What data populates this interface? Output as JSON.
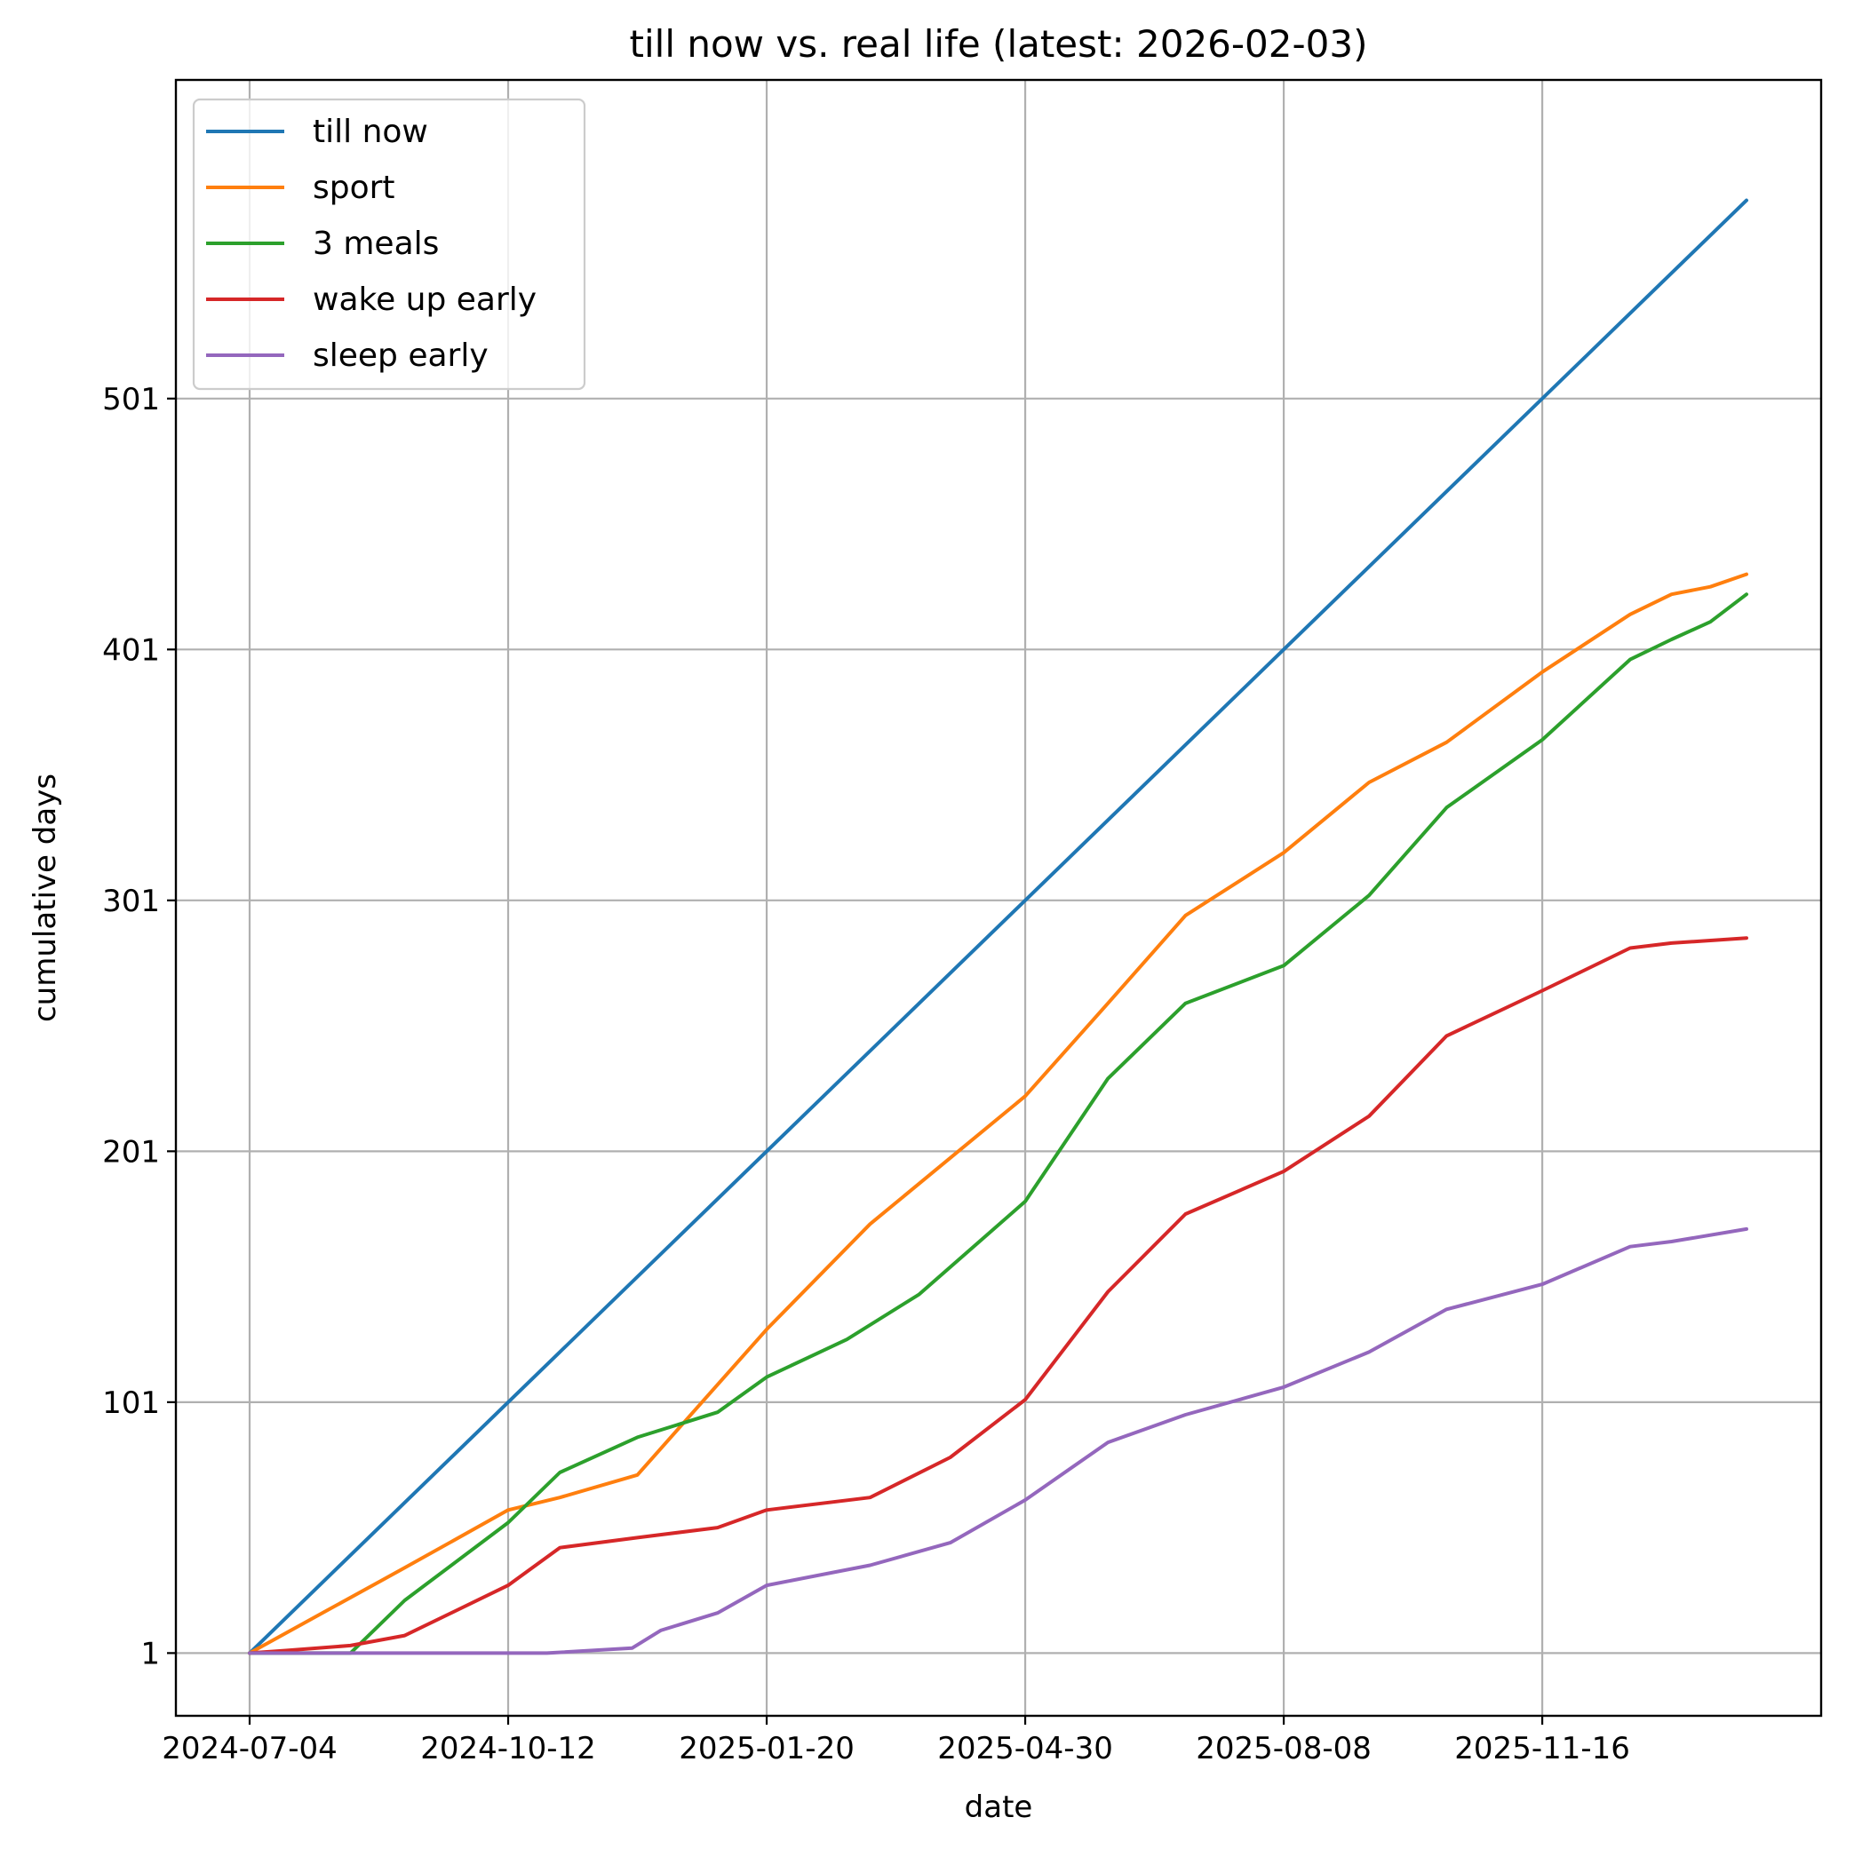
{
  "chart_data": {
    "type": "line",
    "title": "till now vs. real life (latest: 2026-02-03)",
    "xlabel": "date",
    "ylabel": "cumulative days",
    "x_range": [
      "2024-07-04",
      "2026-02-03"
    ],
    "x_ticks": [
      "2024-07-04",
      "2024-10-12",
      "2025-01-20",
      "2025-04-30",
      "2025-08-08",
      "2025-11-16"
    ],
    "y_ticks": [
      1,
      101,
      201,
      301,
      401,
      501
    ],
    "ylim": [
      -24,
      628
    ],
    "grid": true,
    "legend_position": "upper-left",
    "series": [
      {
        "name": "till now",
        "color": "#1f77b4",
        "points": [
          [
            "2024-07-04",
            1
          ],
          [
            "2026-02-03",
            580
          ]
        ]
      },
      {
        "name": "sport",
        "color": "#ff7f0e",
        "points": [
          [
            "2024-07-04",
            1
          ],
          [
            "2024-08-03",
            18
          ],
          [
            "2024-09-02",
            35
          ],
          [
            "2024-10-12",
            58
          ],
          [
            "2024-11-01",
            63
          ],
          [
            "2024-12-01",
            72
          ],
          [
            "2025-01-20",
            130
          ],
          [
            "2025-03-01",
            172
          ],
          [
            "2025-04-30",
            223
          ],
          [
            "2025-06-01",
            260
          ],
          [
            "2025-07-01",
            295
          ],
          [
            "2025-08-08",
            320
          ],
          [
            "2025-09-10",
            348
          ],
          [
            "2025-10-10",
            364
          ],
          [
            "2025-11-16",
            392
          ],
          [
            "2025-12-20",
            415
          ],
          [
            "2026-01-05",
            423
          ],
          [
            "2026-01-20",
            426
          ],
          [
            "2026-02-03",
            431
          ]
        ]
      },
      {
        "name": "3 meals",
        "color": "#2ca02c",
        "points": [
          [
            "2024-07-04",
            1
          ],
          [
            "2024-08-12",
            1
          ],
          [
            "2024-09-02",
            22
          ],
          [
            "2024-10-12",
            53
          ],
          [
            "2024-11-01",
            73
          ],
          [
            "2024-12-01",
            87
          ],
          [
            "2025-01-01",
            97
          ],
          [
            "2025-01-20",
            111
          ],
          [
            "2025-02-20",
            126
          ],
          [
            "2025-03-20",
            144
          ],
          [
            "2025-04-30",
            181
          ],
          [
            "2025-06-01",
            230
          ],
          [
            "2025-07-01",
            260
          ],
          [
            "2025-08-08",
            275
          ],
          [
            "2025-09-10",
            303
          ],
          [
            "2025-10-10",
            338
          ],
          [
            "2025-11-16",
            365
          ],
          [
            "2025-12-20",
            397
          ],
          [
            "2026-01-05",
            405
          ],
          [
            "2026-01-20",
            412
          ],
          [
            "2026-02-03",
            423
          ]
        ]
      },
      {
        "name": "wake up early",
        "color": "#d62728",
        "points": [
          [
            "2024-07-04",
            1
          ],
          [
            "2024-07-18",
            2
          ],
          [
            "2024-08-12",
            4
          ],
          [
            "2024-09-02",
            8
          ],
          [
            "2024-10-12",
            28
          ],
          [
            "2024-11-01",
            43
          ],
          [
            "2024-12-01",
            47
          ],
          [
            "2025-01-01",
            51
          ],
          [
            "2025-01-20",
            58
          ],
          [
            "2025-03-01",
            63
          ],
          [
            "2025-04-01",
            79
          ],
          [
            "2025-04-30",
            102
          ],
          [
            "2025-06-01",
            145
          ],
          [
            "2025-07-01",
            176
          ],
          [
            "2025-08-08",
            193
          ],
          [
            "2025-09-10",
            215
          ],
          [
            "2025-10-10",
            247
          ],
          [
            "2025-11-16",
            265
          ],
          [
            "2025-12-20",
            282
          ],
          [
            "2026-01-05",
            284
          ],
          [
            "2026-02-03",
            286
          ]
        ]
      },
      {
        "name": "sleep early",
        "color": "#9467bd",
        "points": [
          [
            "2024-07-04",
            1
          ],
          [
            "2024-10-27",
            1
          ],
          [
            "2024-11-29",
            3
          ],
          [
            "2024-12-10",
            10
          ],
          [
            "2025-01-01",
            17
          ],
          [
            "2025-01-20",
            28
          ],
          [
            "2025-03-01",
            36
          ],
          [
            "2025-04-01",
            45
          ],
          [
            "2025-04-30",
            62
          ],
          [
            "2025-06-01",
            85
          ],
          [
            "2025-07-01",
            96
          ],
          [
            "2025-08-08",
            107
          ],
          [
            "2025-09-10",
            121
          ],
          [
            "2025-10-10",
            138
          ],
          [
            "2025-11-16",
            148
          ],
          [
            "2025-12-20",
            163
          ],
          [
            "2026-01-05",
            165
          ],
          [
            "2026-02-03",
            170
          ]
        ]
      }
    ]
  }
}
